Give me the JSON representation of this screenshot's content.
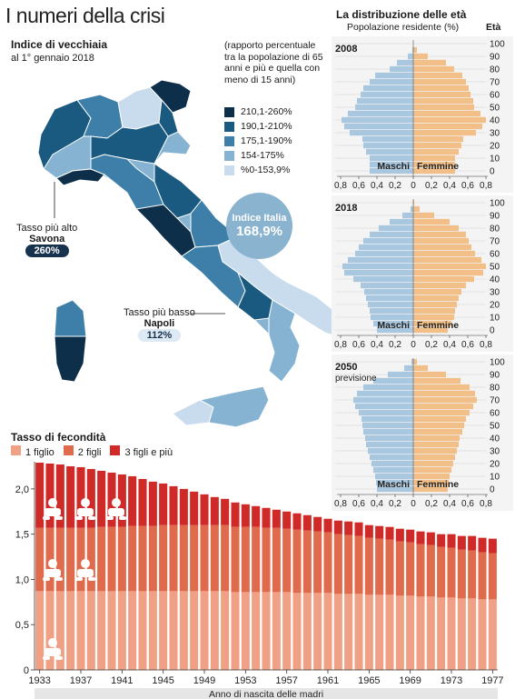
{
  "page": {
    "title": "I numeri della crisi"
  },
  "map": {
    "title": "Indice di vecchiaia",
    "subtitle": "al 1° gennaio 2018",
    "note": "(rapporto percentuale tra la popolazione di 65 anni e più e quella con meno di 15 anni)",
    "legend": [
      {
        "label": "210,1-260%",
        "color": "#0d2f4a"
      },
      {
        "label": "190,1-210%",
        "color": "#1b5a80"
      },
      {
        "label": "175,1-190%",
        "color": "#3d7fa8"
      },
      {
        "label": "154-175%",
        "color": "#86b3d2"
      },
      {
        "label": "%0-153,9%",
        "color": "#c9dced"
      }
    ],
    "italy_index": {
      "label": "Indice Italia",
      "value": "168,9%"
    },
    "highest": {
      "label": "Tasso più alto",
      "name": "Savona",
      "value": "260%"
    },
    "lowest": {
      "label": "Tasso più basso",
      "name": "Napoli",
      "value": "112%"
    }
  },
  "pyramids": {
    "title": "La distribuzione delle età",
    "subtitle": "Popolazione residente (%)",
    "age_label": "Età",
    "male_label": "Maschi",
    "female_label": "Femmine",
    "x_ticks": [
      "0,8",
      "0,6",
      "0,4",
      "0,2",
      "0",
      "0,2",
      "0,4",
      "0,6",
      "0,8"
    ],
    "y_ticks": [
      "0",
      "10",
      "20",
      "30",
      "40",
      "50",
      "60",
      "70",
      "80",
      "90",
      "100"
    ],
    "panels": [
      {
        "year": "2008",
        "note": ""
      },
      {
        "year": "2018",
        "note": ""
      },
      {
        "year": "2050",
        "note": "previsione"
      }
    ]
  },
  "fertility": {
    "title": "Tasso di fecondità",
    "legend": [
      {
        "label": "1 figlio",
        "color": "#f0a085"
      },
      {
        "label": "2 figli",
        "color": "#e06a4c"
      },
      {
        "label": "3 figli e più",
        "color": "#cf2a27"
      }
    ],
    "xlabel": "Anno di nascita delle madri",
    "x_ticks": [
      "1933",
      "1937",
      "1941",
      "1945",
      "1949",
      "1953",
      "1957",
      "1961",
      "1965",
      "1969",
      "1973",
      "1977"
    ],
    "y_ticks": [
      "0",
      "0,5",
      "1,0",
      "1,5",
      "2,0"
    ]
  },
  "chart_data": [
    {
      "type": "bar",
      "title": "Tasso di fecondità",
      "xlabel": "Anno di nascita delle madri",
      "ylabel": "",
      "ylim": [
        0,
        2.3
      ],
      "stacked": true,
      "categories": [
        1933,
        1934,
        1935,
        1936,
        1937,
        1938,
        1939,
        1940,
        1941,
        1942,
        1943,
        1944,
        1945,
        1946,
        1947,
        1948,
        1949,
        1950,
        1951,
        1952,
        1953,
        1954,
        1955,
        1956,
        1957,
        1958,
        1959,
        1960,
        1961,
        1962,
        1963,
        1964,
        1965,
        1966,
        1967,
        1968,
        1969,
        1970,
        1971,
        1972,
        1973,
        1974,
        1975,
        1976,
        1977
      ],
      "series": [
        {
          "name": "1 figlio",
          "values": [
            0.87,
            0.87,
            0.87,
            0.87,
            0.87,
            0.87,
            0.87,
            0.87,
            0.87,
            0.87,
            0.87,
            0.87,
            0.87,
            0.87,
            0.87,
            0.87,
            0.87,
            0.87,
            0.87,
            0.86,
            0.86,
            0.86,
            0.86,
            0.86,
            0.86,
            0.85,
            0.85,
            0.85,
            0.85,
            0.84,
            0.84,
            0.84,
            0.83,
            0.83,
            0.83,
            0.82,
            0.82,
            0.81,
            0.81,
            0.8,
            0.8,
            0.79,
            0.79,
            0.78,
            0.78
          ]
        },
        {
          "name": "2 figli",
          "values": [
            0.7,
            0.7,
            0.7,
            0.7,
            0.7,
            0.7,
            0.71,
            0.71,
            0.71,
            0.72,
            0.72,
            0.72,
            0.73,
            0.73,
            0.73,
            0.73,
            0.73,
            0.73,
            0.73,
            0.72,
            0.72,
            0.72,
            0.71,
            0.71,
            0.7,
            0.7,
            0.69,
            0.68,
            0.67,
            0.66,
            0.65,
            0.64,
            0.63,
            0.62,
            0.61,
            0.6,
            0.59,
            0.58,
            0.57,
            0.56,
            0.55,
            0.54,
            0.53,
            0.52,
            0.51
          ]
        },
        {
          "name": "3 figli e più",
          "values": [
            0.72,
            0.71,
            0.7,
            0.68,
            0.67,
            0.65,
            0.62,
            0.6,
            0.58,
            0.55,
            0.52,
            0.49,
            0.46,
            0.43,
            0.4,
            0.37,
            0.34,
            0.31,
            0.29,
            0.27,
            0.25,
            0.23,
            0.22,
            0.2,
            0.19,
            0.18,
            0.17,
            0.16,
            0.15,
            0.15,
            0.15,
            0.15,
            0.14,
            0.14,
            0.14,
            0.14,
            0.14,
            0.14,
            0.14,
            0.14,
            0.15,
            0.15,
            0.16,
            0.16,
            0.16
          ]
        }
      ]
    },
    {
      "type": "bar",
      "title": "La distribuzione delle età — 2008",
      "orientation": "horizontal",
      "ylabel": "Età",
      "xlim": [
        -0.8,
        0.8
      ],
      "y": [
        0,
        5,
        10,
        15,
        20,
        25,
        30,
        35,
        40,
        45,
        50,
        55,
        60,
        65,
        70,
        75,
        80,
        85,
        90,
        95,
        100
      ],
      "series": [
        {
          "name": "Maschi",
          "values": [
            0.48,
            0.48,
            0.48,
            0.52,
            0.55,
            0.56,
            0.7,
            0.76,
            0.79,
            0.72,
            0.64,
            0.62,
            0.58,
            0.55,
            0.48,
            0.42,
            0.26,
            0.18,
            0.06,
            0.01,
            0.0
          ]
        },
        {
          "name": "Femmine",
          "values": [
            0.46,
            0.46,
            0.46,
            0.5,
            0.53,
            0.55,
            0.69,
            0.76,
            0.8,
            0.74,
            0.67,
            0.66,
            0.63,
            0.61,
            0.58,
            0.54,
            0.45,
            0.36,
            0.16,
            0.04,
            0.0
          ]
        }
      ]
    },
    {
      "type": "bar",
      "title": "La distribuzione delle età — 2018",
      "orientation": "horizontal",
      "ylabel": "Età",
      "xlim": [
        -0.8,
        0.8
      ],
      "y": [
        0,
        5,
        10,
        15,
        20,
        25,
        30,
        35,
        40,
        45,
        50,
        55,
        60,
        65,
        70,
        75,
        80,
        85,
        90,
        95,
        100
      ],
      "series": [
        {
          "name": "Maschi",
          "values": [
            0.4,
            0.44,
            0.47,
            0.48,
            0.5,
            0.52,
            0.54,
            0.58,
            0.66,
            0.76,
            0.78,
            0.72,
            0.64,
            0.6,
            0.55,
            0.48,
            0.38,
            0.26,
            0.12,
            0.03,
            0.0
          ]
        },
        {
          "name": "Femmine",
          "values": [
            0.38,
            0.42,
            0.45,
            0.46,
            0.48,
            0.5,
            0.53,
            0.58,
            0.67,
            0.77,
            0.8,
            0.75,
            0.68,
            0.64,
            0.61,
            0.58,
            0.5,
            0.4,
            0.23,
            0.07,
            0.01
          ]
        }
      ]
    },
    {
      "type": "bar",
      "title": "La distribuzione delle età — 2050 previsione",
      "orientation": "horizontal",
      "ylabel": "Età",
      "xlim": [
        -0.8,
        0.8
      ],
      "y": [
        0,
        5,
        10,
        15,
        20,
        25,
        30,
        35,
        40,
        45,
        50,
        55,
        60,
        65,
        70,
        75,
        80,
        85,
        90,
        95,
        100
      ],
      "series": [
        {
          "name": "Maschi",
          "values": [
            0.4,
            0.41,
            0.42,
            0.44,
            0.46,
            0.48,
            0.5,
            0.52,
            0.53,
            0.55,
            0.56,
            0.57,
            0.6,
            0.64,
            0.66,
            0.62,
            0.55,
            0.44,
            0.28,
            0.1,
            0.02
          ]
        },
        {
          "name": "Femmine",
          "values": [
            0.38,
            0.39,
            0.4,
            0.42,
            0.44,
            0.46,
            0.48,
            0.5,
            0.51,
            0.54,
            0.56,
            0.58,
            0.62,
            0.66,
            0.7,
            0.68,
            0.62,
            0.52,
            0.36,
            0.16,
            0.04
          ]
        }
      ]
    }
  ]
}
